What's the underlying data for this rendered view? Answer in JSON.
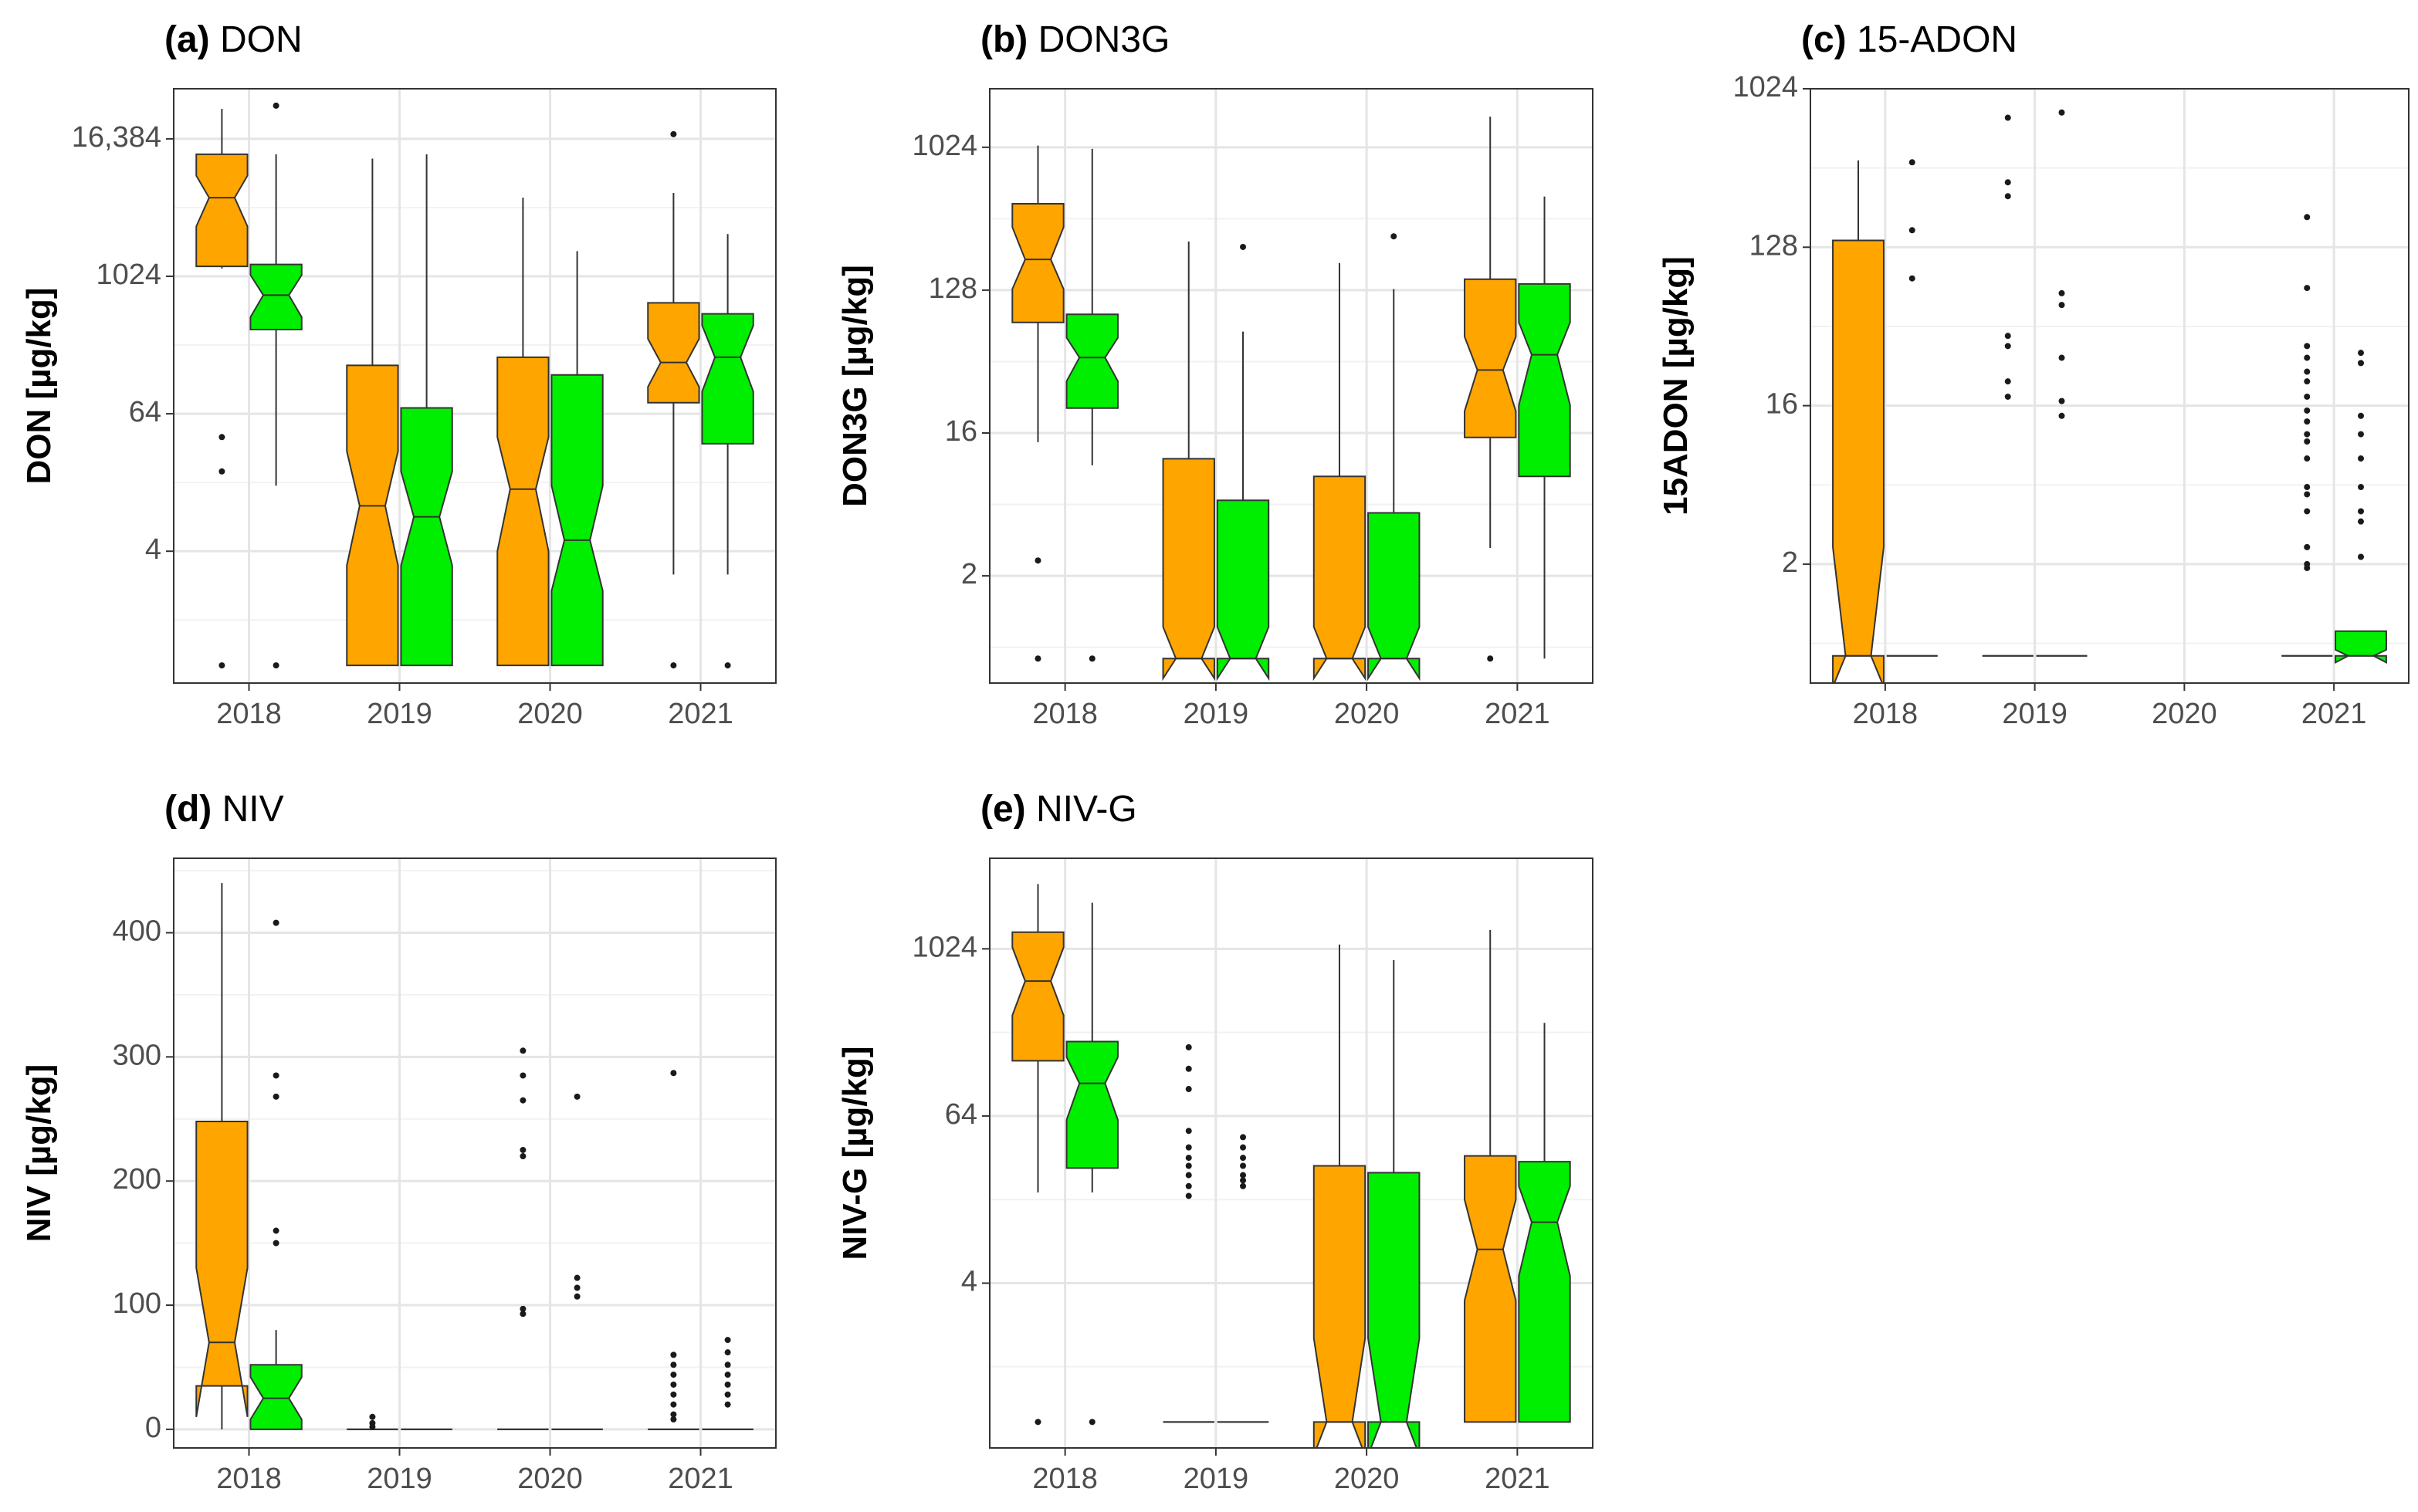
{
  "colors": {
    "series_a": "#ffa500",
    "series_b": "#00ee00",
    "outline": "#333333",
    "grid_major": "#e5e5e5",
    "grid_minor": "#f2f2f2",
    "panel_border": "#333333",
    "outlier": "#1a1a1a"
  },
  "chart_data": [
    {
      "id": "a",
      "type": "boxplot",
      "title_tag": "(a)",
      "title_text": "DON",
      "ylabel": "DON [µg/kg]",
      "yscale": "log2",
      "categories": [
        "2018",
        "2019",
        "2020",
        "2021"
      ],
      "yticks": [
        4,
        64,
        1024,
        16384
      ],
      "ytick_labels": [
        "4",
        "64",
        "1024",
        "16,384"
      ],
      "ylim": [
        0.28,
        45000
      ],
      "series": [
        {
          "name": "orange",
          "color": "#ffa500",
          "boxes": [
            {
              "min": 1200,
              "q1": 1250,
              "median": 5000,
              "q3": 12000,
              "max": 30000,
              "notch": [
                2800,
                7800
              ],
              "outliers": [
                40,
                20,
                0.4
              ]
            },
            {
              "min": 0.4,
              "q1": 0.4,
              "median": 10,
              "q3": 170,
              "max": 11000,
              "notch": [
                3,
                30
              ],
              "outliers": []
            },
            {
              "min": 0.4,
              "q1": 0.4,
              "median": 14,
              "q3": 200,
              "max": 5000,
              "notch": [
                4,
                40
              ],
              "outliers": []
            },
            {
              "min": 2.5,
              "q1": 80,
              "median": 180,
              "q3": 600,
              "max": 5500,
              "notch": [
                110,
                290
              ],
              "outliers": [
                18000,
                0.4
              ]
            }
          ]
        },
        {
          "name": "green",
          "color": "#00ee00",
          "boxes": [
            {
              "min": 15,
              "q1": 350,
              "median": 700,
              "q3": 1300,
              "max": 12000,
              "notch": [
                450,
                1050
              ],
              "outliers": [
                32000,
                0.4
              ]
            },
            {
              "min": 0.4,
              "q1": 0.4,
              "median": 8,
              "q3": 72,
              "max": 12000,
              "notch": [
                3,
                20
              ],
              "outliers": []
            },
            {
              "min": 0.4,
              "q1": 0.4,
              "median": 5,
              "q3": 140,
              "max": 1700,
              "notch": [
                1.8,
                15
              ],
              "outliers": []
            },
            {
              "min": 2.5,
              "q1": 35,
              "median": 200,
              "q3": 480,
              "max": 2400,
              "notch": [
                100,
                380
              ],
              "outliers": [
                0.4
              ]
            }
          ]
        }
      ]
    },
    {
      "id": "b",
      "type": "boxplot",
      "title_tag": "(b)",
      "title_text": "DON3G",
      "ylabel": "DON3G [µg/kg]",
      "yscale": "log2",
      "categories": [
        "2018",
        "2019",
        "2020",
        "2021"
      ],
      "yticks": [
        2,
        16,
        128,
        1024
      ],
      "ytick_labels": [
        "2",
        "16",
        "128",
        "1024"
      ],
      "ylim": [
        0.42,
        2400
      ],
      "series": [
        {
          "name": "orange",
          "color": "#ffa500",
          "boxes": [
            {
              "min": 14,
              "q1": 80,
              "median": 200,
              "q3": 450,
              "max": 1050,
              "notch": [
                130,
                320
              ],
              "outliers": [
                2.5,
                0.6
              ]
            },
            {
              "min": 0.6,
              "q1": 0.6,
              "median": 0.6,
              "q3": 11,
              "max": 260,
              "notch": [
                0.45,
                0.95
              ],
              "outliers": []
            },
            {
              "min": 0.6,
              "q1": 0.6,
              "median": 0.6,
              "q3": 8.5,
              "max": 190,
              "notch": [
                0.45,
                0.95
              ],
              "outliers": []
            },
            {
              "min": 3,
              "q1": 15,
              "median": 40,
              "q3": 150,
              "max": 1600,
              "notch": [
                22,
                65
              ],
              "outliers": [
                0.6
              ]
            }
          ]
        },
        {
          "name": "green",
          "color": "#00ee00",
          "boxes": [
            {
              "min": 10,
              "q1": 23,
              "median": 48,
              "q3": 90,
              "max": 1000,
              "notch": [
                34,
                64
              ],
              "outliers": [
                0.6
              ]
            },
            {
              "min": 0.6,
              "q1": 0.6,
              "median": 0.6,
              "q3": 6,
              "max": 70,
              "notch": [
                0.45,
                0.95
              ],
              "outliers": [
                240
              ]
            },
            {
              "min": 0.6,
              "q1": 0.6,
              "median": 0.6,
              "q3": 5,
              "max": 130,
              "notch": [
                0.45,
                0.95
              ],
              "outliers": [
                280
              ]
            },
            {
              "min": 0.6,
              "q1": 8.5,
              "median": 50,
              "q3": 140,
              "max": 500,
              "notch": [
                24,
                80
              ],
              "outliers": []
            }
          ]
        }
      ]
    },
    {
      "id": "c",
      "type": "boxplot",
      "title_tag": "(c)",
      "title_text": "15-ADON",
      "ylabel": "15ADON [µg/kg]",
      "yscale": "log2",
      "categories": [
        "2018",
        "2019",
        "2020",
        "2021"
      ],
      "yticks": [
        2,
        16,
        128,
        1024
      ],
      "ytick_labels": [
        "2",
        "16",
        "128",
        "1024"
      ],
      "ylim": [
        0.42,
        1024
      ],
      "series": [
        {
          "name": "orange",
          "color": "#ffa500",
          "boxes": [
            {
              "min": 0.6,
              "q1": 0.6,
              "median": 0.6,
              "q3": 140,
              "max": 400,
              "notch": [
                0.4,
                2.5
              ],
              "outliers": []
            },
            {
              "min": 0.6,
              "q1": 0.6,
              "median": 0.6,
              "q3": 0.6,
              "max": 0.6,
              "outliers": [
                700,
                300,
                250,
                40,
                35,
                22,
                18
              ]
            },
            null,
            {
              "min": 0.6,
              "q1": 0.6,
              "median": 0.6,
              "q3": 0.6,
              "max": 0.6,
              "outliers": [
                190,
                75,
                35,
                30,
                25,
                22,
                18,
                15,
                13,
                11,
                10,
                8,
                5.5,
                5,
                4,
                2.5,
                2,
                1.9
              ]
            }
          ]
        },
        {
          "name": "green",
          "color": "#00ee00",
          "boxes": [
            {
              "min": 0.6,
              "q1": 0.6,
              "median": 0.6,
              "q3": 0.6,
              "max": 0.6,
              "outliers": [
                390,
                160,
                85
              ]
            },
            {
              "min": 0.6,
              "q1": 0.6,
              "median": 0.6,
              "q3": 0.6,
              "max": 0.6,
              "outliers": [
                750,
                70,
                60,
                30,
                17,
                14
              ]
            },
            null,
            {
              "min": 0.6,
              "q1": 0.6,
              "median": 0.6,
              "q3": 0.83,
              "max": 0.83,
              "notch": [
                0.55,
                0.65
              ],
              "outliers": [
                32,
                28,
                14,
                11,
                8,
                5.5,
                4,
                3.5,
                2.2
              ]
            }
          ]
        }
      ]
    },
    {
      "id": "d",
      "type": "boxplot",
      "title_tag": "(d)",
      "title_text": "NIV",
      "ylabel": "NIV [µg/kg]",
      "yscale": "linear",
      "categories": [
        "2018",
        "2019",
        "2020",
        "2021"
      ],
      "yticks": [
        0,
        100,
        200,
        300,
        400
      ],
      "ytick_labels": [
        "0",
        "100",
        "200",
        "300",
        "400"
      ],
      "ylim": [
        -15,
        460
      ],
      "series": [
        {
          "name": "orange",
          "color": "#ffa500",
          "boxes": [
            {
              "min": 0,
              "q1": 35,
              "median": 70,
              "q3": 248,
              "max": 440,
              "notch": [
                10,
                130
              ],
              "outliers": []
            },
            {
              "min": 0,
              "q1": 0,
              "median": 0,
              "q3": 0,
              "max": 0,
              "outliers": [
                10,
                5,
                2
              ]
            },
            {
              "min": 0,
              "q1": 0,
              "median": 0,
              "q3": 0,
              "max": 0,
              "outliers": [
                305,
                285,
                265,
                225,
                220,
                97,
                93
              ]
            },
            {
              "min": 0,
              "q1": 0,
              "median": 0,
              "q3": 0,
              "max": 0,
              "outliers": [
                287,
                60,
                52,
                44,
                36,
                28,
                20,
                12,
                8
              ]
            }
          ]
        },
        {
          "name": "green",
          "color": "#00ee00",
          "boxes": [
            {
              "min": 0,
              "q1": 0,
              "median": 25,
              "q3": 52,
              "max": 80,
              "notch": [
                8,
                42
              ],
              "outliers": [
                408,
                285,
                268,
                160,
                150
              ]
            },
            {
              "min": 0,
              "q1": 0,
              "median": 0,
              "q3": 0,
              "max": 0,
              "outliers": []
            },
            {
              "min": 0,
              "q1": 0,
              "median": 0,
              "q3": 0,
              "max": 0,
              "outliers": [
                268,
                122,
                114,
                107
              ]
            },
            {
              "min": 0,
              "q1": 0,
              "median": 0,
              "q3": 0,
              "max": 0,
              "outliers": [
                72,
                62,
                52,
                44,
                36,
                28,
                20
              ]
            }
          ]
        }
      ]
    },
    {
      "id": "e",
      "type": "boxplot",
      "title_tag": "(e)",
      "title_text": "NIV-G",
      "ylabel": "NIV-G [µg/kg]",
      "yscale": "log2",
      "categories": [
        "2018",
        "2019",
        "2020",
        "2021"
      ],
      "yticks": [
        4,
        64,
        1024
      ],
      "ytick_labels": [
        "4",
        "64",
        "1024"
      ],
      "ylim": [
        0.26,
        4600
      ],
      "series": [
        {
          "name": "orange",
          "color": "#ffa500",
          "boxes": [
            {
              "min": 18,
              "q1": 160,
              "median": 600,
              "q3": 1350,
              "max": 3000,
              "notch": [
                340,
                1050
              ],
              "outliers": [
                0.4
              ]
            },
            {
              "min": 0.4,
              "q1": 0.4,
              "median": 0.4,
              "q3": 0.4,
              "max": 0.4,
              "outliers": [
                200,
                140,
                100,
                50,
                38,
                32,
                28,
                24,
                20,
                17
              ]
            },
            {
              "min": 0.4,
              "q1": 0.4,
              "median": 0.4,
              "q3": 28,
              "max": 1100,
              "notch": [
                0.23,
                1.6
              ],
              "outliers": []
            },
            {
              "min": 0.4,
              "q1": 0.4,
              "median": 7,
              "q3": 33,
              "max": 1400,
              "notch": [
                3,
                16
              ],
              "outliers": []
            }
          ]
        },
        {
          "name": "green",
          "color": "#00ee00",
          "boxes": [
            {
              "min": 18,
              "q1": 27,
              "median": 110,
              "q3": 220,
              "max": 2200,
              "notch": [
                60,
                170
              ],
              "outliers": [
                0.4
              ]
            },
            {
              "min": 0.4,
              "q1": 0.4,
              "median": 0.4,
              "q3": 0.4,
              "max": 0.4,
              "outliers": [
                45,
                38,
                32,
                28,
                24,
                22,
                20
              ]
            },
            {
              "min": 0.4,
              "q1": 0.4,
              "median": 0.4,
              "q3": 25,
              "max": 850,
              "notch": [
                0.23,
                1.6
              ],
              "outliers": []
            },
            {
              "min": 0.4,
              "q1": 0.4,
              "median": 11,
              "q3": 30,
              "max": 300,
              "notch": [
                4.5,
                20
              ],
              "outliers": []
            }
          ]
        }
      ]
    }
  ]
}
